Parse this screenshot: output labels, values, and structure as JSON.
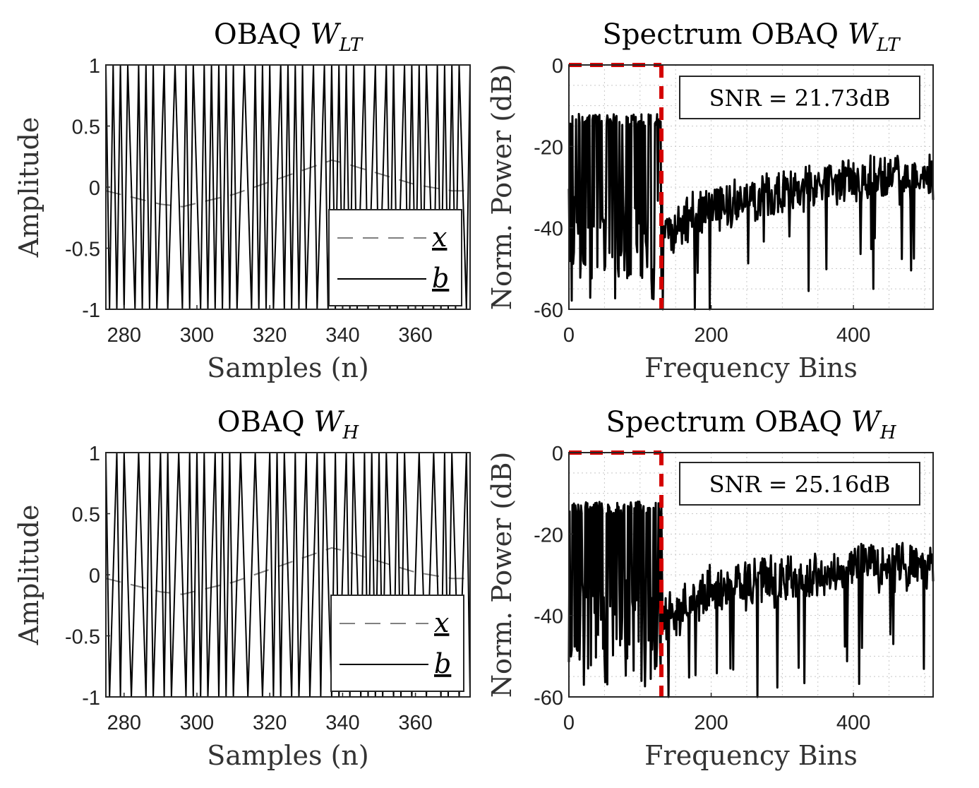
{
  "chart_data": [
    {
      "id": "p1",
      "type": "line",
      "title": "OBAQ",
      "title_symbol": "W",
      "title_subscript": "LT",
      "xlabel": "Samples (n)",
      "ylabel": "Amplitude",
      "xlim": [
        275,
        375
      ],
      "ylim": [
        -1,
        1
      ],
      "xticks": [
        280,
        300,
        320,
        340,
        360
      ],
      "yticks": [
        -1,
        -0.5,
        0,
        0.5,
        1
      ],
      "ytick_labels": [
        "-1",
        "-0.5",
        "0",
        "0.5",
        "1"
      ],
      "legend": [
        "x",
        "b"
      ],
      "legend_position": "bottom-right",
      "grid": false,
      "series": [
        {
          "name": "x",
          "style": "dashed",
          "color": "#808080",
          "x": [
            275,
            290,
            296,
            310,
            337,
            340,
            360,
            370,
            375
          ],
          "y": [
            -0.03,
            -0.14,
            -0.16,
            -0.06,
            0.22,
            0.2,
            0.02,
            -0.03,
            -0.03
          ]
        },
        {
          "name": "b",
          "style": "solid",
          "color": "#000000",
          "kind": "binary",
          "x": [
            275,
            375
          ],
          "levels": [
            -1,
            1
          ]
        }
      ]
    },
    {
      "id": "p2",
      "type": "line",
      "title": "Spectrum OBAQ",
      "title_symbol": "W",
      "title_subscript": "LT",
      "xlabel": "Frequency Bins",
      "ylabel": "Norm. Power (dB)",
      "xlim": [
        0,
        512
      ],
      "ylim": [
        -60,
        0
      ],
      "xticks": [
        0,
        200,
        400
      ],
      "yticks": [
        -60,
        -40,
        -20,
        0
      ],
      "grid": true,
      "annotation": "SNR = 21.73dB",
      "band_edge": 130,
      "band_color": "#d40000",
      "series": [
        {
          "name": "spectrum",
          "color": "#000000",
          "x": [
            0,
            130,
            132,
            200,
            300,
            400,
            512
          ],
          "y": [
            -12,
            -12,
            -39,
            -32,
            -28,
            -25,
            -25
          ]
        }
      ]
    },
    {
      "id": "p3",
      "type": "line",
      "title": "OBAQ",
      "title_symbol": "W",
      "title_subscript": "H",
      "xlabel": "Samples (n)",
      "ylabel": "Amplitude",
      "xlim": [
        275,
        375
      ],
      "ylim": [
        -1,
        1
      ],
      "xticks": [
        280,
        300,
        320,
        340,
        360
      ],
      "yticks": [
        -1,
        -0.5,
        0,
        0.5,
        1
      ],
      "ytick_labels": [
        "-1",
        "-0.5",
        "0",
        "0.5",
        "1"
      ],
      "legend": [
        "x",
        "b"
      ],
      "legend_position": "bottom-right",
      "grid": false,
      "series": [
        {
          "name": "x",
          "style": "dashed",
          "color": "#808080",
          "x": [
            275,
            290,
            296,
            310,
            337,
            340,
            360,
            370,
            375
          ],
          "y": [
            -0.03,
            -0.14,
            -0.16,
            -0.06,
            0.22,
            0.2,
            0.02,
            -0.03,
            -0.03
          ]
        },
        {
          "name": "b",
          "style": "solid",
          "color": "#000000",
          "kind": "binary",
          "x": [
            275,
            375
          ],
          "levels": [
            -1,
            1
          ]
        }
      ]
    },
    {
      "id": "p4",
      "type": "line",
      "title": "Spectrum OBAQ",
      "title_symbol": "W",
      "title_subscript": "H",
      "xlabel": "Frequency Bins",
      "ylabel": "Norm. Power (dB)",
      "xlim": [
        0,
        512
      ],
      "ylim": [
        -60,
        0
      ],
      "xticks": [
        0,
        200,
        400
      ],
      "yticks": [
        -60,
        -40,
        -20,
        0
      ],
      "grid": true,
      "annotation": "SNR = 25.16dB",
      "band_edge": 130,
      "band_color": "#d40000",
      "series": [
        {
          "name": "spectrum",
          "color": "#000000",
          "x": [
            0,
            130,
            132,
            200,
            300,
            400,
            512
          ],
          "y": [
            -12,
            -12,
            -38,
            -31,
            -28,
            -25,
            -25
          ]
        }
      ]
    }
  ]
}
